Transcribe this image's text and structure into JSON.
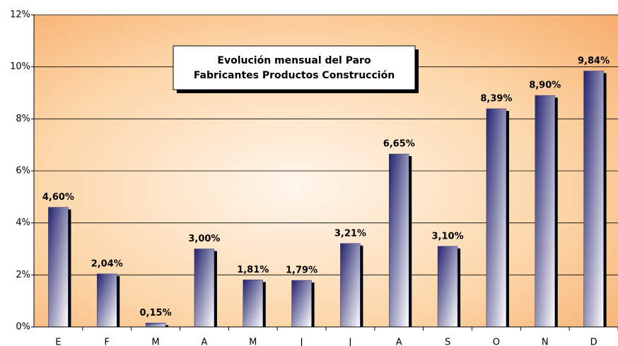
{
  "chart_data": {
    "type": "bar",
    "title": "Evolución mensual del Paro",
    "subtitle": "Fabricantes Productos Construcción",
    "categories": [
      "E",
      "F",
      "M",
      "A",
      "M",
      "J",
      "J",
      "A",
      "S",
      "O",
      "N",
      "D"
    ],
    "values": [
      4.6,
      2.04,
      0.15,
      3.0,
      1.81,
      1.79,
      3.21,
      6.65,
      3.1,
      8.39,
      8.9,
      9.84
    ],
    "value_labels": [
      "4,60%",
      "2,04%",
      "0,15%",
      "3,00%",
      "1,81%",
      "1,79%",
      "3,21%",
      "6,65%",
      "3,10%",
      "8,39%",
      "8,90%",
      "9,84%"
    ],
    "color": "#2e2e7a",
    "ylim": [
      0,
      12
    ],
    "yticks": [
      {
        "value": 0,
        "label": "0%"
      },
      {
        "value": 2,
        "label": "2%"
      },
      {
        "value": 4,
        "label": "4%"
      },
      {
        "value": 6,
        "label": "6%"
      },
      {
        "value": 8,
        "label": "8%"
      },
      {
        "value": 10,
        "label": "10%"
      },
      {
        "value": 12,
        "label": "12%"
      }
    ],
    "grid": true
  }
}
